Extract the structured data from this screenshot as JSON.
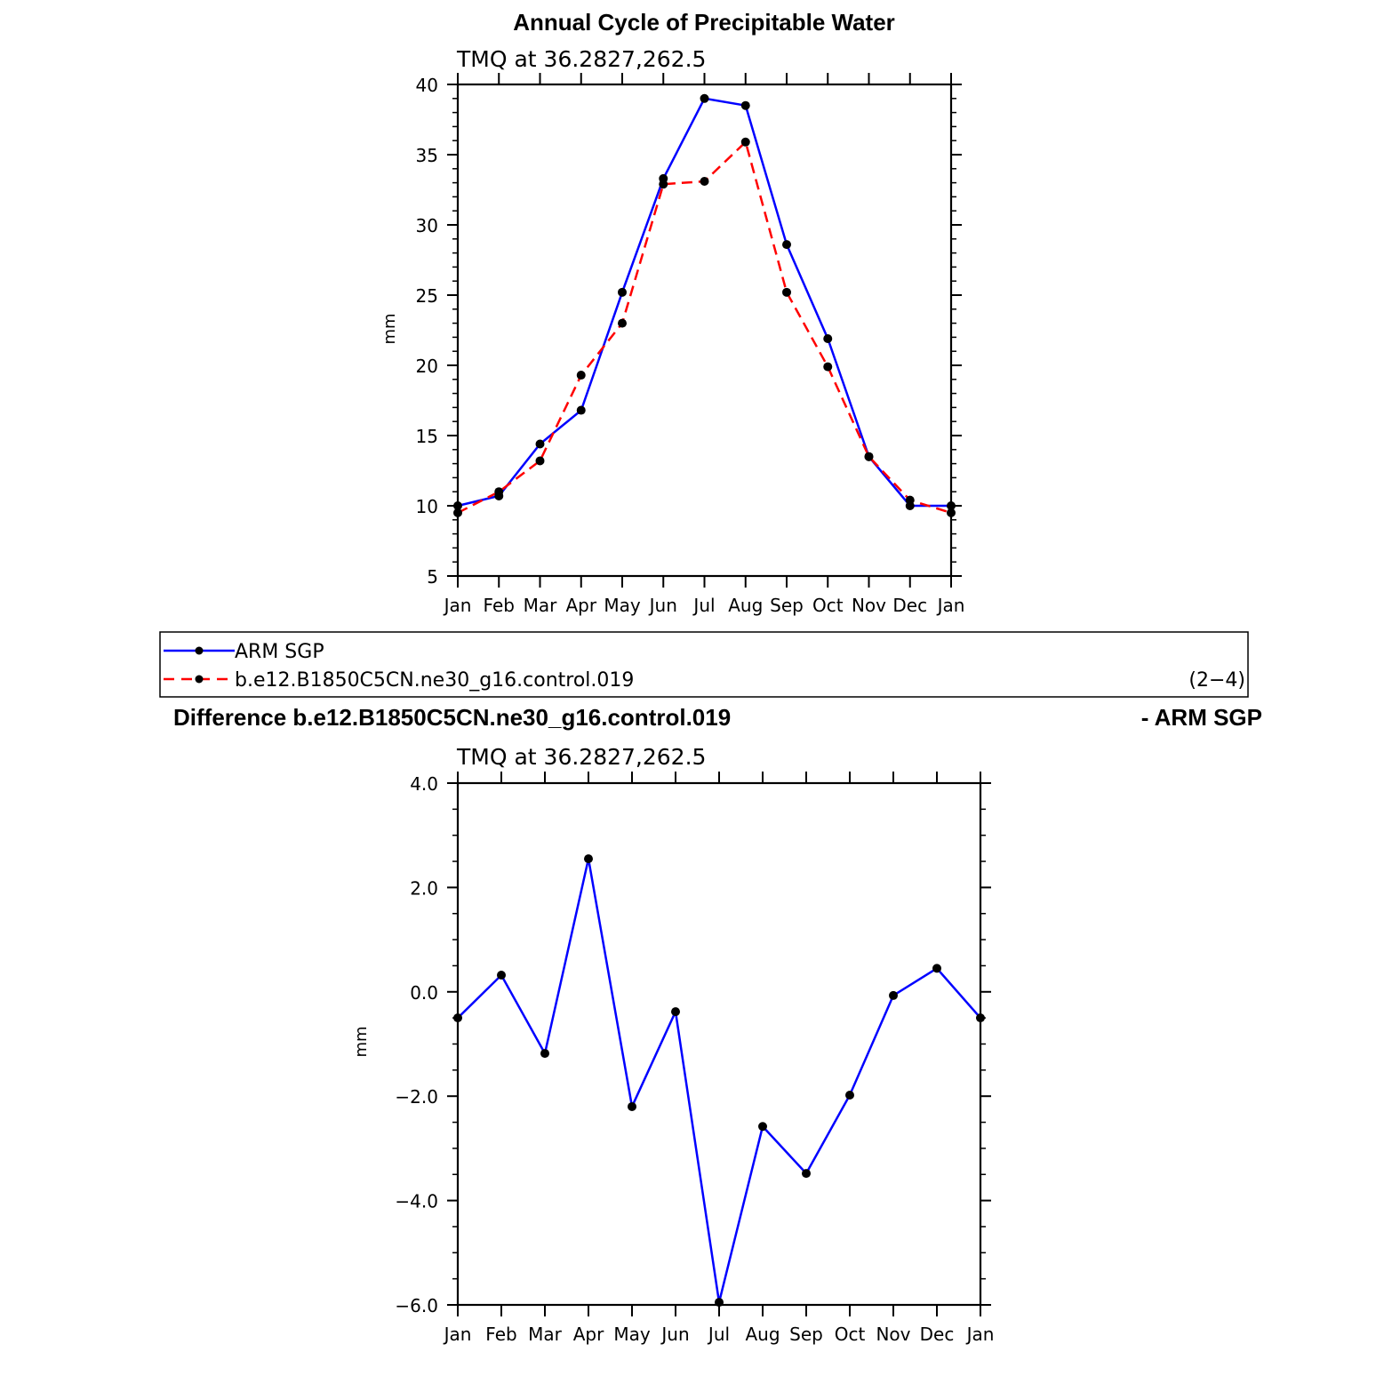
{
  "page_label": "(2−4)",
  "legend": {
    "items": [
      {
        "label": "ARM SGP",
        "color": "#0000ff",
        "dash": "solid"
      },
      {
        "label": "b.e12.B1850C5CN.ne30_g16.control.019",
        "color": "#ff0000",
        "dash": "dashed"
      }
    ]
  },
  "chart_data": [
    {
      "type": "line",
      "title": "Annual Cycle of Precipitable Water",
      "subtitle": "TMQ  at  36.2827,262.5",
      "ylabel": "mm",
      "ylim": [
        5,
        40
      ],
      "yticks": [
        "5",
        "10",
        "15",
        "20",
        "25",
        "30",
        "35",
        "40"
      ],
      "categories": [
        "Jan",
        "Feb",
        "Mar",
        "Apr",
        "May",
        "Jun",
        "Jul",
        "Aug",
        "Sep",
        "Oct",
        "Nov",
        "Dec",
        "Jan"
      ],
      "series": [
        {
          "name": "ARM SGP",
          "color": "#0000ff",
          "dash": "solid",
          "values": [
            10.0,
            10.7,
            14.4,
            16.8,
            25.2,
            33.3,
            39.0,
            38.5,
            28.6,
            21.9,
            13.5,
            10.0,
            10.0
          ]
        },
        {
          "name": "b.e12.B1850C5CN.ne30_g16.control.019",
          "color": "#ff0000",
          "dash": "dashed",
          "values": [
            9.5,
            11.0,
            13.2,
            19.3,
            23.0,
            32.9,
            33.1,
            35.9,
            25.2,
            19.9,
            13.5,
            10.4,
            9.5
          ]
        }
      ]
    },
    {
      "type": "line",
      "title_left": "Difference b.e12.B1850C5CN.ne30_g16.control.019",
      "title_right": "- ARM SGP",
      "subtitle": "TMQ  at  36.2827,262.5",
      "ylabel": "mm",
      "ylim": [
        -6,
        4
      ],
      "yticks": [
        "−6.0",
        "−4.0",
        "−2.0",
        "0.0",
        "2.0",
        "4.0"
      ],
      "categories": [
        "Jan",
        "Feb",
        "Mar",
        "Apr",
        "May",
        "Jun",
        "Jul",
        "Aug",
        "Sep",
        "Oct",
        "Nov",
        "Dec",
        "Jan"
      ],
      "series": [
        {
          "color": "#0000ff",
          "dash": "solid",
          "values": [
            -0.5,
            0.32,
            -1.18,
            2.55,
            -2.2,
            -0.38,
            -5.95,
            -2.58,
            -3.48,
            -1.98,
            -0.07,
            0.45,
            -0.5
          ]
        }
      ]
    }
  ]
}
